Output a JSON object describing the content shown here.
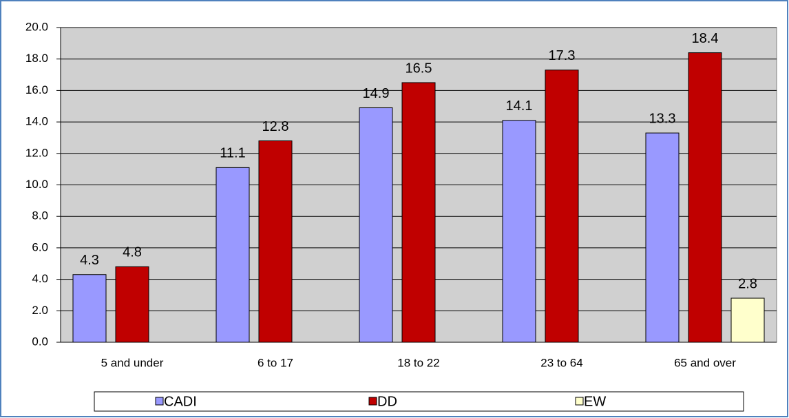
{
  "chart_data": {
    "type": "bar",
    "categories": [
      "5 and under",
      "6 to 17",
      "18 to 22",
      "23 to 64",
      "65 and over"
    ],
    "series": [
      {
        "name": "CADI",
        "color": "#9999ff",
        "values": [
          4.3,
          11.1,
          14.9,
          14.1,
          13.3
        ]
      },
      {
        "name": "DD",
        "color": "#c00000",
        "values": [
          4.8,
          12.8,
          16.5,
          17.3,
          18.4
        ]
      },
      {
        "name": "EW",
        "color": "#ffffcc",
        "values": [
          null,
          null,
          null,
          null,
          2.8
        ]
      }
    ],
    "ylim": [
      0,
      20
    ],
    "yticks": [
      {
        "value": 0,
        "label": "0.0"
      },
      {
        "value": 2,
        "label": "2.0"
      },
      {
        "value": 4,
        "label": "4.0"
      },
      {
        "value": 6,
        "label": "6.0"
      },
      {
        "value": 8,
        "label": "8.0"
      },
      {
        "value": 10,
        "label": "10.0"
      },
      {
        "value": 12,
        "label": "12.0"
      },
      {
        "value": 14,
        "label": "14.0"
      },
      {
        "value": 16,
        "label": "16.0"
      },
      {
        "value": 18,
        "label": "18.0"
      },
      {
        "value": 20,
        "label": "20.0"
      }
    ],
    "grid": true,
    "legend": "bottom"
  }
}
